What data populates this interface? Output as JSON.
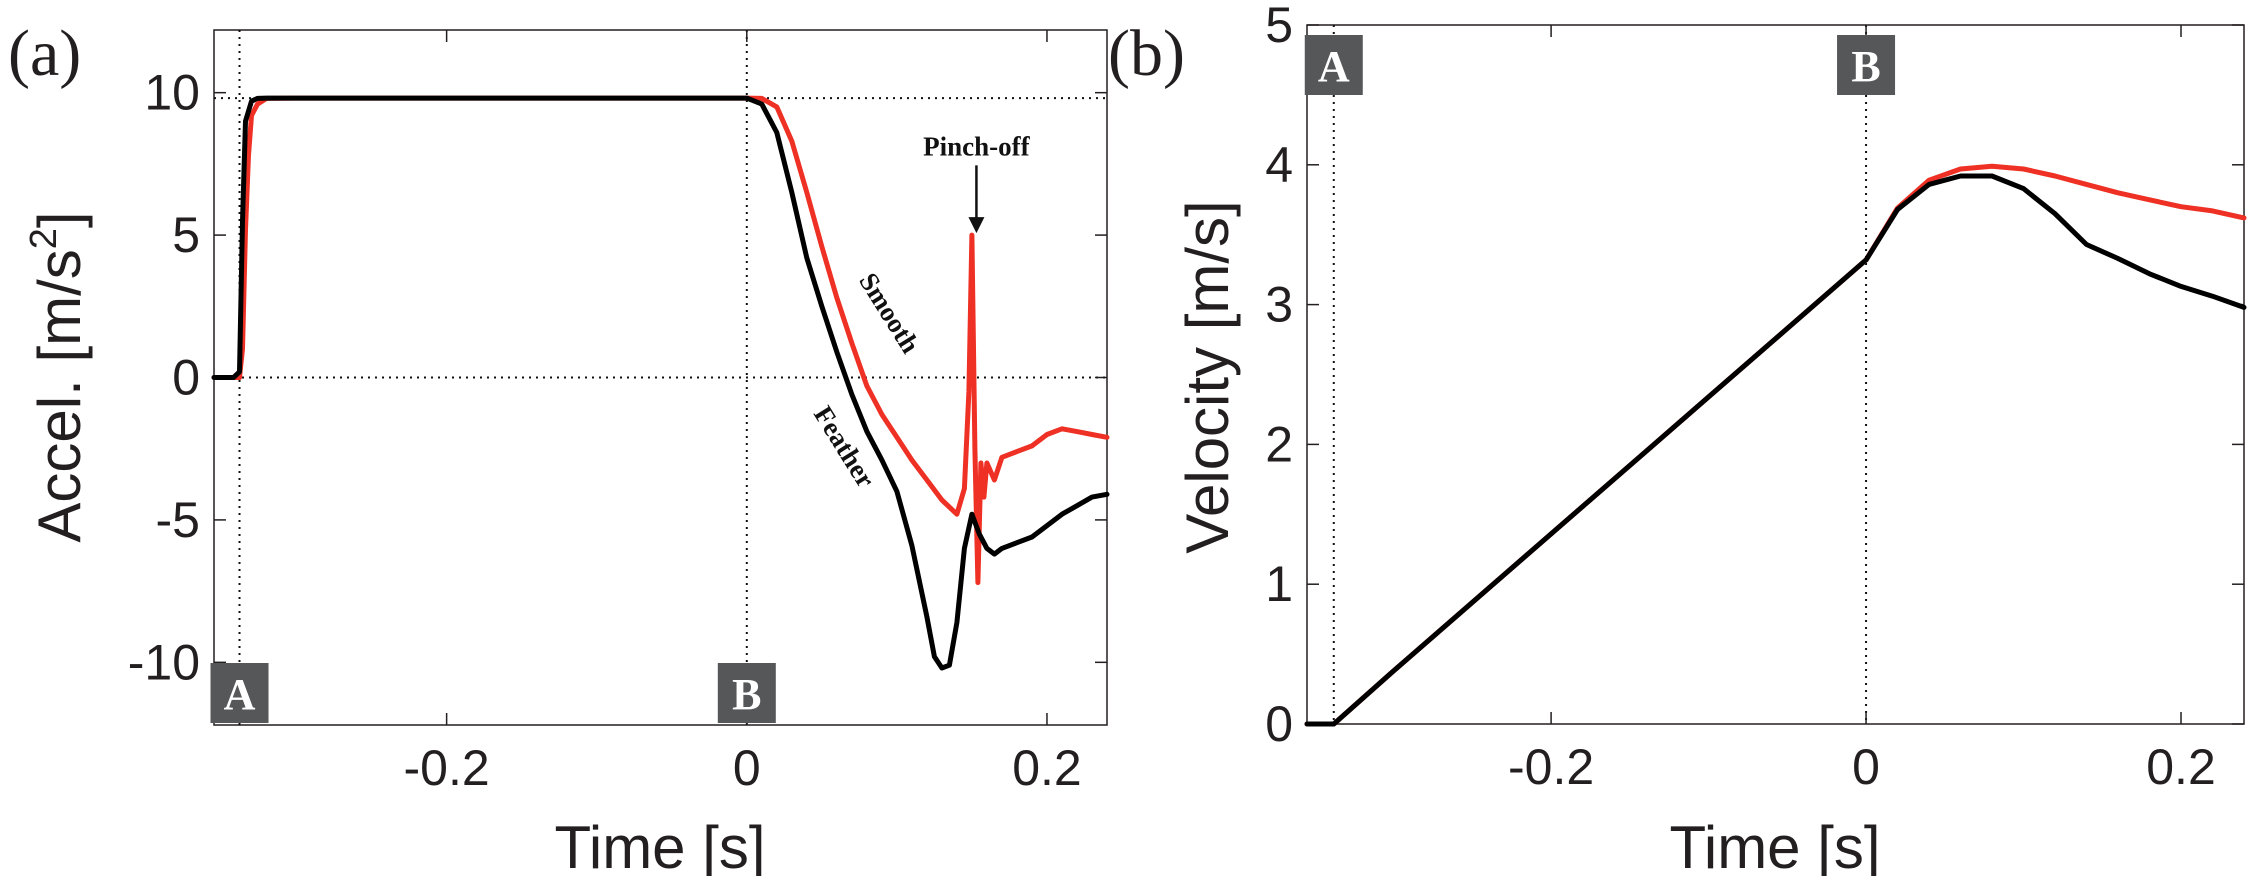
{
  "chart_data": [
    {
      "panel_label": "(a)",
      "type": "line",
      "xlabel": "Time [s]",
      "ylabel": "Accel. [m/s",
      "ylabel_sup": "2",
      "ylabel_end": "]",
      "xlim": [
        -0.355,
        0.24
      ],
      "ylim": [
        -12.2,
        12.2
      ],
      "xticks": [
        -0.2,
        0,
        0.2
      ],
      "xtick_labels": [
        "-0.2",
        "0",
        "0.2"
      ],
      "yticks": [
        -10,
        -5,
        0,
        5,
        10
      ],
      "ytick_labels": [
        "-10",
        "-5",
        "0",
        "5",
        "10"
      ],
      "ref_hlines": [
        9.81,
        0
      ],
      "ref_vlines": [
        -0.338,
        0
      ],
      "event_boxes": [
        {
          "label": "A",
          "x": -0.338,
          "position": "bottom"
        },
        {
          "label": "B",
          "x": 0,
          "position": "bottom"
        }
      ],
      "annotations": [
        {
          "text": "Pinch-off",
          "x": 0.153,
          "y": 7.8,
          "arrow_to": [
            0.153,
            5.0
          ]
        },
        {
          "text": "Smooth",
          "x": 0.09,
          "y": 2.1,
          "rotation": 58
        },
        {
          "text": "Feather",
          "x": 0.06,
          "y": -2.6,
          "rotation": 58
        }
      ],
      "series": [
        {
          "name": "Smooth",
          "color": "#ee3124",
          "x": [
            -0.355,
            -0.342,
            -0.338,
            -0.336,
            -0.334,
            -0.332,
            -0.33,
            -0.326,
            -0.32,
            -0.3,
            -0.25,
            -0.2,
            -0.1,
            0,
            0.01,
            0.02,
            0.03,
            0.04,
            0.05,
            0.06,
            0.07,
            0.08,
            0.09,
            0.1,
            0.11,
            0.12,
            0.13,
            0.14,
            0.145,
            0.148,
            0.15,
            0.152,
            0.154,
            0.156,
            0.158,
            0.16,
            0.165,
            0.17,
            0.18,
            0.19,
            0.2,
            0.21,
            0.22,
            0.23,
            0.24
          ],
          "y": [
            0,
            0,
            0,
            1,
            5.2,
            7.8,
            9.2,
            9.6,
            9.8,
            9.81,
            9.81,
            9.81,
            9.81,
            9.81,
            9.8,
            9.5,
            8.3,
            6.5,
            4.6,
            2.8,
            1.2,
            -0.3,
            -1.3,
            -2.1,
            -2.9,
            -3.6,
            -4.3,
            -4.8,
            -3.9,
            -0.5,
            5.0,
            -2.5,
            -7.2,
            -3.0,
            -4.2,
            -3.0,
            -3.6,
            -2.8,
            -2.6,
            -2.4,
            -2.0,
            -1.8,
            -1.9,
            -2.0,
            -2.1
          ]
        },
        {
          "name": "Feather",
          "color": "#000000",
          "x": [
            -0.355,
            -0.342,
            -0.338,
            -0.336,
            -0.334,
            -0.33,
            -0.326,
            -0.32,
            -0.3,
            -0.25,
            -0.2,
            -0.1,
            0,
            0.01,
            0.02,
            0.03,
            0.04,
            0.05,
            0.06,
            0.07,
            0.08,
            0.09,
            0.1,
            0.11,
            0.12,
            0.125,
            0.13,
            0.135,
            0.14,
            0.145,
            0.15,
            0.155,
            0.16,
            0.165,
            0.17,
            0.18,
            0.19,
            0.2,
            0.21,
            0.22,
            0.23,
            0.24
          ],
          "y": [
            0,
            0,
            0.2,
            5.5,
            9.0,
            9.7,
            9.8,
            9.81,
            9.81,
            9.81,
            9.81,
            9.81,
            9.81,
            9.6,
            8.6,
            6.5,
            4.2,
            2.5,
            0.9,
            -0.6,
            -1.9,
            -2.9,
            -4.0,
            -5.9,
            -8.4,
            -9.8,
            -10.2,
            -10.1,
            -8.6,
            -6.0,
            -4.8,
            -5.5,
            -6.0,
            -6.2,
            -6.0,
            -5.8,
            -5.6,
            -5.2,
            -4.8,
            -4.5,
            -4.2,
            -4.1
          ]
        }
      ]
    },
    {
      "panel_label": "(b)",
      "type": "line",
      "xlabel": "Time [s]",
      "ylabel": "Velocity [m/s]",
      "xlim": [
        -0.355,
        0.24
      ],
      "ylim": [
        0,
        5
      ],
      "xticks": [
        -0.2,
        0,
        0.2
      ],
      "xtick_labels": [
        "-0.2",
        "0",
        "0.2"
      ],
      "yticks": [
        0,
        1,
        2,
        3,
        4,
        5
      ],
      "ytick_labels": [
        "0",
        "1",
        "2",
        "3",
        "4",
        "5"
      ],
      "ref_vlines": [
        -0.338,
        0
      ],
      "event_boxes": [
        {
          "label": "A",
          "x": -0.338,
          "position": "top"
        },
        {
          "label": "B",
          "x": 0,
          "position": "top"
        }
      ],
      "series": [
        {
          "name": "Smooth",
          "color": "#ee3124",
          "x": [
            -0.355,
            -0.338,
            -0.3,
            -0.2,
            -0.1,
            0,
            0.02,
            0.04,
            0.06,
            0.08,
            0.1,
            0.12,
            0.14,
            0.16,
            0.18,
            0.2,
            0.22,
            0.24
          ],
          "y": [
            0,
            0,
            0.38,
            1.36,
            2.34,
            3.32,
            3.69,
            3.89,
            3.97,
            3.99,
            3.97,
            3.92,
            3.86,
            3.8,
            3.75,
            3.7,
            3.67,
            3.62
          ]
        },
        {
          "name": "Feather",
          "color": "#000000",
          "x": [
            -0.355,
            -0.338,
            -0.3,
            -0.2,
            -0.1,
            0,
            0.02,
            0.04,
            0.06,
            0.08,
            0.1,
            0.12,
            0.14,
            0.16,
            0.18,
            0.2,
            0.22,
            0.24
          ],
          "y": [
            0,
            0,
            0.38,
            1.36,
            2.34,
            3.32,
            3.68,
            3.86,
            3.92,
            3.92,
            3.83,
            3.65,
            3.43,
            3.33,
            3.22,
            3.13,
            3.06,
            2.98
          ]
        }
      ]
    }
  ]
}
